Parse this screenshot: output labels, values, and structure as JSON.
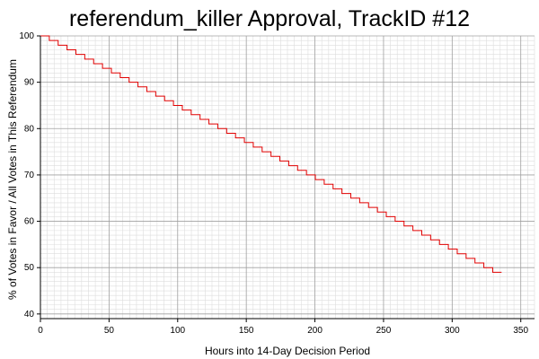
{
  "chart_data": {
    "type": "line",
    "title": "referendum_killer Approval, TrackID #12",
    "xlabel": "Hours into 14-Day Decision Period",
    "ylabel": "% of Votes in Favor / All Votes in This Referendum",
    "xlim": [
      0,
      360
    ],
    "ylim": [
      39,
      100
    ],
    "xticks": [
      0,
      50,
      100,
      150,
      200,
      250,
      300,
      350
    ],
    "yticks": [
      40,
      50,
      60,
      70,
      80,
      90,
      100
    ],
    "x_tick_labels": [
      "0",
      "50",
      "100",
      "150",
      "200",
      "250",
      "300",
      "350"
    ],
    "y_tick_labels": [
      "40",
      "50",
      "60",
      "70",
      "80",
      "90",
      "100"
    ],
    "grid": "on",
    "series": [
      {
        "color": "#e00000",
        "x": [
          0,
          336
        ],
        "y": [
          100,
          49
        ]
      }
    ]
  },
  "colors": {
    "line": "#e00000",
    "major_grid": "#a0a0a0",
    "minor_grid": "#dddddd",
    "axis": "#000000"
  }
}
